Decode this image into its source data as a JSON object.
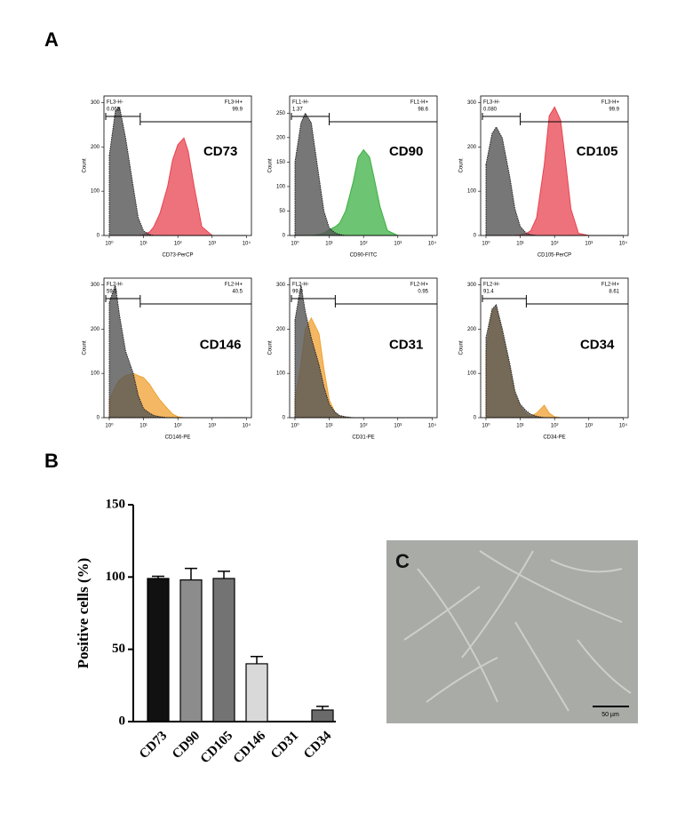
{
  "panel_labels": [
    "A",
    "B",
    "C"
  ],
  "micrograph": {
    "scale_bar": "50 µm"
  },
  "chart_data": [
    {
      "type": "area",
      "ylabel": "Count",
      "xlabel": "CD73-PerCP",
      "log_x": true,
      "xlim": [
        0.7,
        14000
      ],
      "ylim": [
        0,
        315
      ],
      "xticks": [
        {
          "value": 1,
          "label": "10⁰"
        },
        {
          "value": 10,
          "label": "10¹"
        },
        {
          "value": 100,
          "label": "10²"
        },
        {
          "value": 1000,
          "label": "10³"
        },
        {
          "value": 10000,
          "label": "10⁴"
        }
      ],
      "yticks": [
        0,
        100,
        200,
        300
      ],
      "x": [
        1,
        1.5,
        2,
        3,
        5,
        7,
        10,
        15,
        20,
        30,
        50,
        70,
        100,
        150,
        200,
        300,
        500,
        1000,
        10000
      ],
      "series": [
        {
          "color": "#555555",
          "values": [
            180,
            280,
            290,
            220,
            110,
            40,
            10,
            2,
            0,
            0,
            0,
            0,
            0,
            0,
            0,
            0,
            0,
            0,
            0
          ]
        },
        {
          "name": "CD73",
          "color": "#e8434f",
          "values": [
            0,
            0,
            0,
            0,
            0,
            0,
            2,
            8,
            20,
            50,
            110,
            170,
            205,
            220,
            190,
            110,
            20,
            0,
            0
          ]
        }
      ],
      "gate": {
        "neg_label": "FL3-H-",
        "neg_value": 0.065,
        "pos_label": "FL3-H+",
        "pos_value": 99.9,
        "split": 8
      }
    },
    {
      "type": "area",
      "ylabel": "Count",
      "xlabel": "CD90-FITC",
      "log_x": true,
      "xlim": [
        0.7,
        14000
      ],
      "ylim": [
        0,
        285
      ],
      "xticks": [
        {
          "value": 1,
          "label": "10⁰"
        },
        {
          "value": 10,
          "label": "10¹"
        },
        {
          "value": 100,
          "label": "10²"
        },
        {
          "value": 1000,
          "label": "10³"
        },
        {
          "value": 10000,
          "label": "10⁴"
        }
      ],
      "yticks": [
        0,
        50,
        100,
        150,
        200,
        250
      ],
      "x": [
        1,
        1.5,
        2,
        3,
        5,
        7,
        10,
        15,
        20,
        30,
        50,
        70,
        100,
        150,
        200,
        300,
        500,
        1000,
        10000
      ],
      "series": [
        {
          "color": "#555555",
          "values": [
            150,
            230,
            250,
            230,
            120,
            50,
            15,
            5,
            2,
            0,
            0,
            0,
            0,
            0,
            0,
            0,
            0,
            0,
            0
          ]
        },
        {
          "name": "CD90",
          "color": "#3cb043",
          "values": [
            0,
            0,
            0,
            0,
            2,
            5,
            12,
            18,
            25,
            50,
            110,
            160,
            175,
            160,
            120,
            60,
            10,
            0,
            0
          ]
        }
      ],
      "gate": {
        "neg_label": "FL1-H-",
        "neg_value": 1.37,
        "pos_label": "FL1-H+",
        "pos_value": 98.6,
        "split": 10
      }
    },
    {
      "type": "area",
      "ylabel": "Count",
      "xlabel": "CD105-PerCP",
      "log_x": true,
      "xlim": [
        0.7,
        14000
      ],
      "ylim": [
        0,
        315
      ],
      "xticks": [
        {
          "value": 1,
          "label": "10⁰"
        },
        {
          "value": 10,
          "label": "10¹"
        },
        {
          "value": 100,
          "label": "10²"
        },
        {
          "value": 1000,
          "label": "10³"
        },
        {
          "value": 10000,
          "label": "10⁴"
        }
      ],
      "yticks": [
        0,
        100,
        200,
        300
      ],
      "x": [
        1,
        1.5,
        2,
        3,
        5,
        7,
        10,
        15,
        20,
        30,
        50,
        70,
        100,
        150,
        200,
        300,
        500,
        1000,
        10000
      ],
      "series": [
        {
          "color": "#555555",
          "values": [
            160,
            230,
            245,
            220,
            130,
            60,
            20,
            5,
            2,
            0,
            0,
            0,
            0,
            0,
            0,
            0,
            0,
            0,
            0
          ]
        },
        {
          "name": "CD105",
          "color": "#e8434f",
          "values": [
            0,
            0,
            0,
            0,
            0,
            0,
            2,
            5,
            10,
            40,
            160,
            270,
            290,
            260,
            180,
            60,
            5,
            0,
            0
          ]
        }
      ],
      "gate": {
        "neg_label": "FL3-H-",
        "neg_value": {
          "value": 0.08,
          "label": "0.080"
        },
        "pos_label": "FL3-H+",
        "pos_value": 99.9,
        "split": 10
      }
    },
    {
      "type": "area",
      "ylabel": "Count",
      "xlabel": "CD146-PE",
      "log_x": true,
      "xlim": [
        0.7,
        14000
      ],
      "ylim": [
        0,
        315
      ],
      "xticks": [
        {
          "value": 1,
          "label": "10⁰"
        },
        {
          "value": 10,
          "label": "10¹"
        },
        {
          "value": 100,
          "label": "10²"
        },
        {
          "value": 1000,
          "label": "10³"
        },
        {
          "value": 10000,
          "label": "10⁴"
        }
      ],
      "yticks": [
        0,
        100,
        200,
        300
      ],
      "x": [
        1,
        1.5,
        2,
        3,
        5,
        7,
        10,
        15,
        20,
        30,
        50,
        70,
        100,
        150,
        200,
        300,
        500,
        1000,
        10000
      ],
      "series": [
        {
          "color": "#555555",
          "values": [
            260,
            300,
            230,
            150,
            100,
            50,
            20,
            10,
            5,
            2,
            0,
            0,
            0,
            0,
            0,
            0,
            0,
            0,
            0
          ]
        },
        {
          "name": "CD146",
          "color": "#f0a030",
          "values": [
            40,
            70,
            85,
            95,
            100,
            95,
            90,
            75,
            60,
            40,
            20,
            8,
            2,
            0,
            0,
            0,
            0,
            0,
            0
          ]
        }
      ],
      "gate": {
        "neg_label": "FL2-H-",
        "neg_value": 59.5,
        "pos_label": "FL2-H+",
        "pos_value": 40.5,
        "split": 8
      }
    },
    {
      "type": "area",
      "ylabel": "Count",
      "xlabel": "CD31-PE",
      "log_x": true,
      "xlim": [
        0.7,
        14000
      ],
      "ylim": [
        0,
        315
      ],
      "xticks": [
        {
          "value": 1,
          "label": "10⁰"
        },
        {
          "value": 10,
          "label": "10¹"
        },
        {
          "value": 100,
          "label": "10²"
        },
        {
          "value": 1000,
          "label": "10³"
        },
        {
          "value": 10000,
          "label": "10⁴"
        }
      ],
      "yticks": [
        0,
        100,
        200,
        300
      ],
      "x": [
        1,
        1.5,
        2,
        3,
        5,
        7,
        10,
        15,
        20,
        30,
        50,
        70,
        100,
        150,
        200,
        300,
        500,
        1000,
        10000
      ],
      "series": [
        {
          "color": "#555555",
          "values": [
            220,
            300,
            240,
            180,
            120,
            70,
            30,
            12,
            5,
            2,
            0,
            0,
            0,
            0,
            0,
            0,
            0,
            0,
            0
          ]
        },
        {
          "name": "CD31",
          "color": "#f0a030",
          "values": [
            40,
            120,
            200,
            225,
            190,
            110,
            40,
            10,
            3,
            0,
            0,
            0,
            0,
            0,
            0,
            0,
            0,
            0,
            0
          ]
        }
      ],
      "gate": {
        "neg_label": "FL2-H-",
        "neg_value": {
          "value": 99,
          "label": "99.0"
        },
        "pos_label": "FL2-H+",
        "pos_value": 0.95,
        "split": 15
      }
    },
    {
      "type": "area",
      "ylabel": "Count",
      "xlabel": "CD34-PE",
      "log_x": true,
      "xlim": [
        0.7,
        14000
      ],
      "ylim": [
        0,
        315
      ],
      "xticks": [
        {
          "value": 1,
          "label": "10⁰"
        },
        {
          "value": 10,
          "label": "10¹"
        },
        {
          "value": 100,
          "label": "10²"
        },
        {
          "value": 1000,
          "label": "10³"
        },
        {
          "value": 10000,
          "label": "10⁴"
        }
      ],
      "yticks": [
        0,
        100,
        200,
        300
      ],
      "x": [
        1,
        1.5,
        2,
        3,
        5,
        7,
        10,
        15,
        20,
        30,
        50,
        70,
        100,
        150,
        200,
        300,
        500,
        1000,
        10000
      ],
      "series": [
        {
          "color": "#555555",
          "values": [
            180,
            245,
            255,
            200,
            120,
            60,
            30,
            15,
            8,
            3,
            0,
            0,
            0,
            0,
            0,
            0,
            0,
            0,
            0
          ]
        },
        {
          "name": "CD34",
          "color": "#f0a030",
          "values": [
            150,
            240,
            250,
            190,
            110,
            55,
            25,
            8,
            3,
            10,
            28,
            10,
            2,
            0,
            0,
            0,
            0,
            0,
            0
          ]
        }
      ],
      "gate": {
        "neg_label": "FL2-H-",
        "neg_value": 91.4,
        "pos_label": "FL2-H+",
        "pos_value": 8.61,
        "split": 15
      }
    },
    {
      "type": "bar",
      "ylabel": "Positive cells (%)",
      "categories": [
        "CD73",
        "CD90",
        "CD105",
        "CD146",
        "CD31",
        "CD34"
      ],
      "values": [
        99,
        98,
        99,
        40,
        0,
        8
      ],
      "errors": [
        1.5,
        8,
        5,
        5,
        0,
        2.5
      ],
      "colors": [
        "#111111",
        "#8c8c8c",
        "#737373",
        "#d9d9d9",
        "#ffffff",
        "#6a6a6a"
      ],
      "ylim": [
        0,
        150
      ],
      "yticks": [
        0,
        50,
        100,
        150
      ]
    }
  ]
}
